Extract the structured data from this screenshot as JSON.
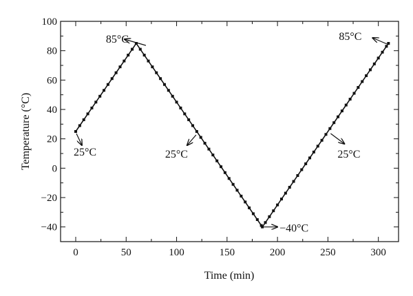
{
  "chart_data": {
    "type": "line",
    "xlabel": "Time (min)",
    "ylabel": "Temperature (°C)",
    "xlim": [
      -15,
      320
    ],
    "ylim": [
      -50,
      100
    ],
    "xticks": [
      0,
      50,
      100,
      150,
      200,
      250,
      300
    ],
    "yticks": [
      -40,
      -20,
      0,
      20,
      40,
      60,
      80,
      100
    ],
    "xtick_labels": [
      "0",
      "50",
      "100",
      "150",
      "200",
      "250",
      "300"
    ],
    "ytick_labels": [
      "−40",
      "−20",
      "0",
      "20",
      "40",
      "60",
      "80",
      "100"
    ],
    "grid": false,
    "series": [
      {
        "x": [
          0,
          60,
          185,
          310
        ],
        "y": [
          25,
          85,
          -40,
          85
        ],
        "marker": "square",
        "marker_spacing_min": 4
      }
    ],
    "annotations": [
      {
        "text": "85°C",
        "x": 60,
        "y": 85
      },
      {
        "text": "25°C",
        "x": 0,
        "y": 25
      },
      {
        "text": "25°C",
        "x": 120,
        "y": 25
      },
      {
        "text": "−40°C",
        "x": 185,
        "y": -40
      },
      {
        "text": "25°C",
        "x": 250,
        "y": 25
      },
      {
        "text": "85°C",
        "x": 310,
        "y": 85
      }
    ]
  }
}
